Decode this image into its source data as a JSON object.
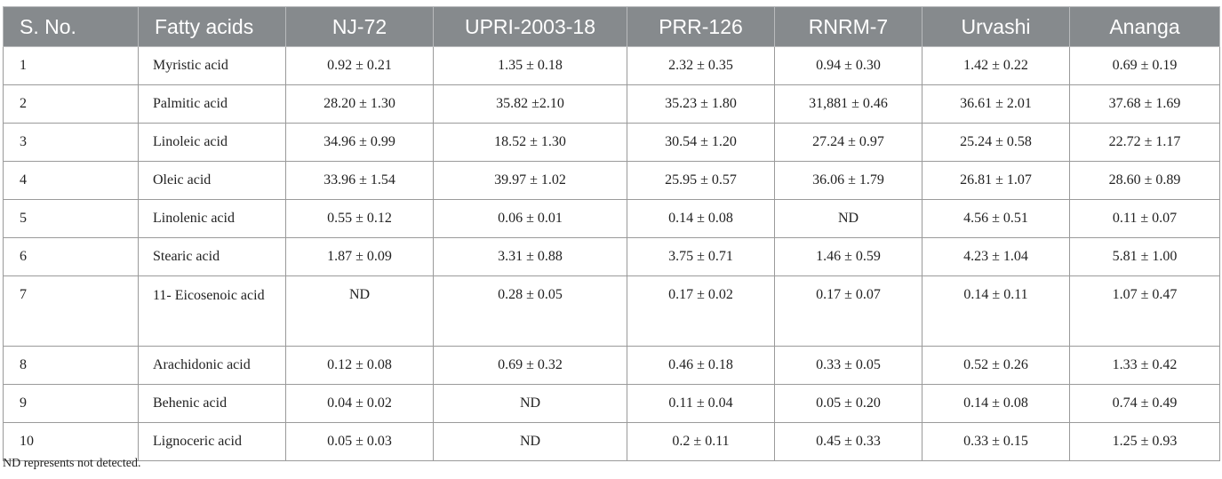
{
  "table": {
    "headers": [
      "S. No.",
      "Fatty acids",
      "NJ-72",
      "UPRI-2003-18",
      "PRR-126",
      "RNRM-7",
      "Urvashi",
      "Ananga"
    ],
    "rows": [
      [
        "1",
        "Myristic acid",
        "0.92 ± 0.21",
        "1.35 ± 0.18",
        "2.32 ± 0.35",
        "0.94 ± 0.30",
        "1.42 ± 0.22",
        "0.69 ± 0.19"
      ],
      [
        "2",
        "Palmitic acid",
        "28.20 ± 1.30",
        "35.82 ±2.10",
        "35.23 ± 1.80",
        "31,881 ± 0.46",
        "36.61 ± 2.01",
        "37.68 ± 1.69"
      ],
      [
        "3",
        "Linoleic acid",
        "34.96 ± 0.99",
        "18.52 ± 1.30",
        "30.54 ± 1.20",
        "27.24 ± 0.97",
        "25.24 ± 0.58",
        "22.72 ± 1.17"
      ],
      [
        "4",
        "Oleic acid",
        "33.96 ± 1.54",
        "39.97 ± 1.02",
        "25.95 ± 0.57",
        "36.06 ± 1.79",
        "26.81 ± 1.07",
        "28.60 ± 0.89"
      ],
      [
        "5",
        "Linolenic acid",
        "0.55 ± 0.12",
        "0.06 ± 0.01",
        "0.14 ± 0.08",
        "ND",
        "4.56 ± 0.51",
        "0.11 ± 0.07"
      ],
      [
        "6",
        "Stearic acid",
        "1.87 ± 0.09",
        "3.31 ± 0.88",
        "3.75 ± 0.71",
        "1.46 ± 0.59",
        "4.23 ± 1.04",
        "5.81 ± 1.00"
      ],
      [
        "7",
        "11- Eicosenoic acid",
        "ND",
        "0.28 ± 0.05",
        "0.17 ± 0.02",
        "0.17 ± 0.07",
        "0.14 ± 0.11",
        "1.07 ± 0.47"
      ],
      [
        "8",
        "Arachidonic acid",
        "0.12 ± 0.08",
        "0.69 ± 0.32",
        "0.46 ± 0.18",
        "0.33 ± 0.05",
        "0.52 ± 0.26",
        "1.33 ± 0.42"
      ],
      [
        "9",
        "Behenic acid",
        "0.04 ± 0.02",
        "ND",
        "0.11 ± 0.04",
        "0.05 ± 0.20",
        "0.14 ± 0.08",
        "0.74 ± 0.49"
      ],
      [
        "10",
        "Lignoceric acid",
        "0.05 ± 0.03",
        "ND",
        "0.2 ± 0.11",
        "0.45 ± 0.33",
        "0.33 ± 0.15",
        "1.25 ± 0.93"
      ]
    ]
  },
  "footnote": "ND represents not detected.",
  "colors": {
    "header_bg": "#868a8d",
    "header_text": "#ffffff",
    "border": "#9a9a9a"
  }
}
